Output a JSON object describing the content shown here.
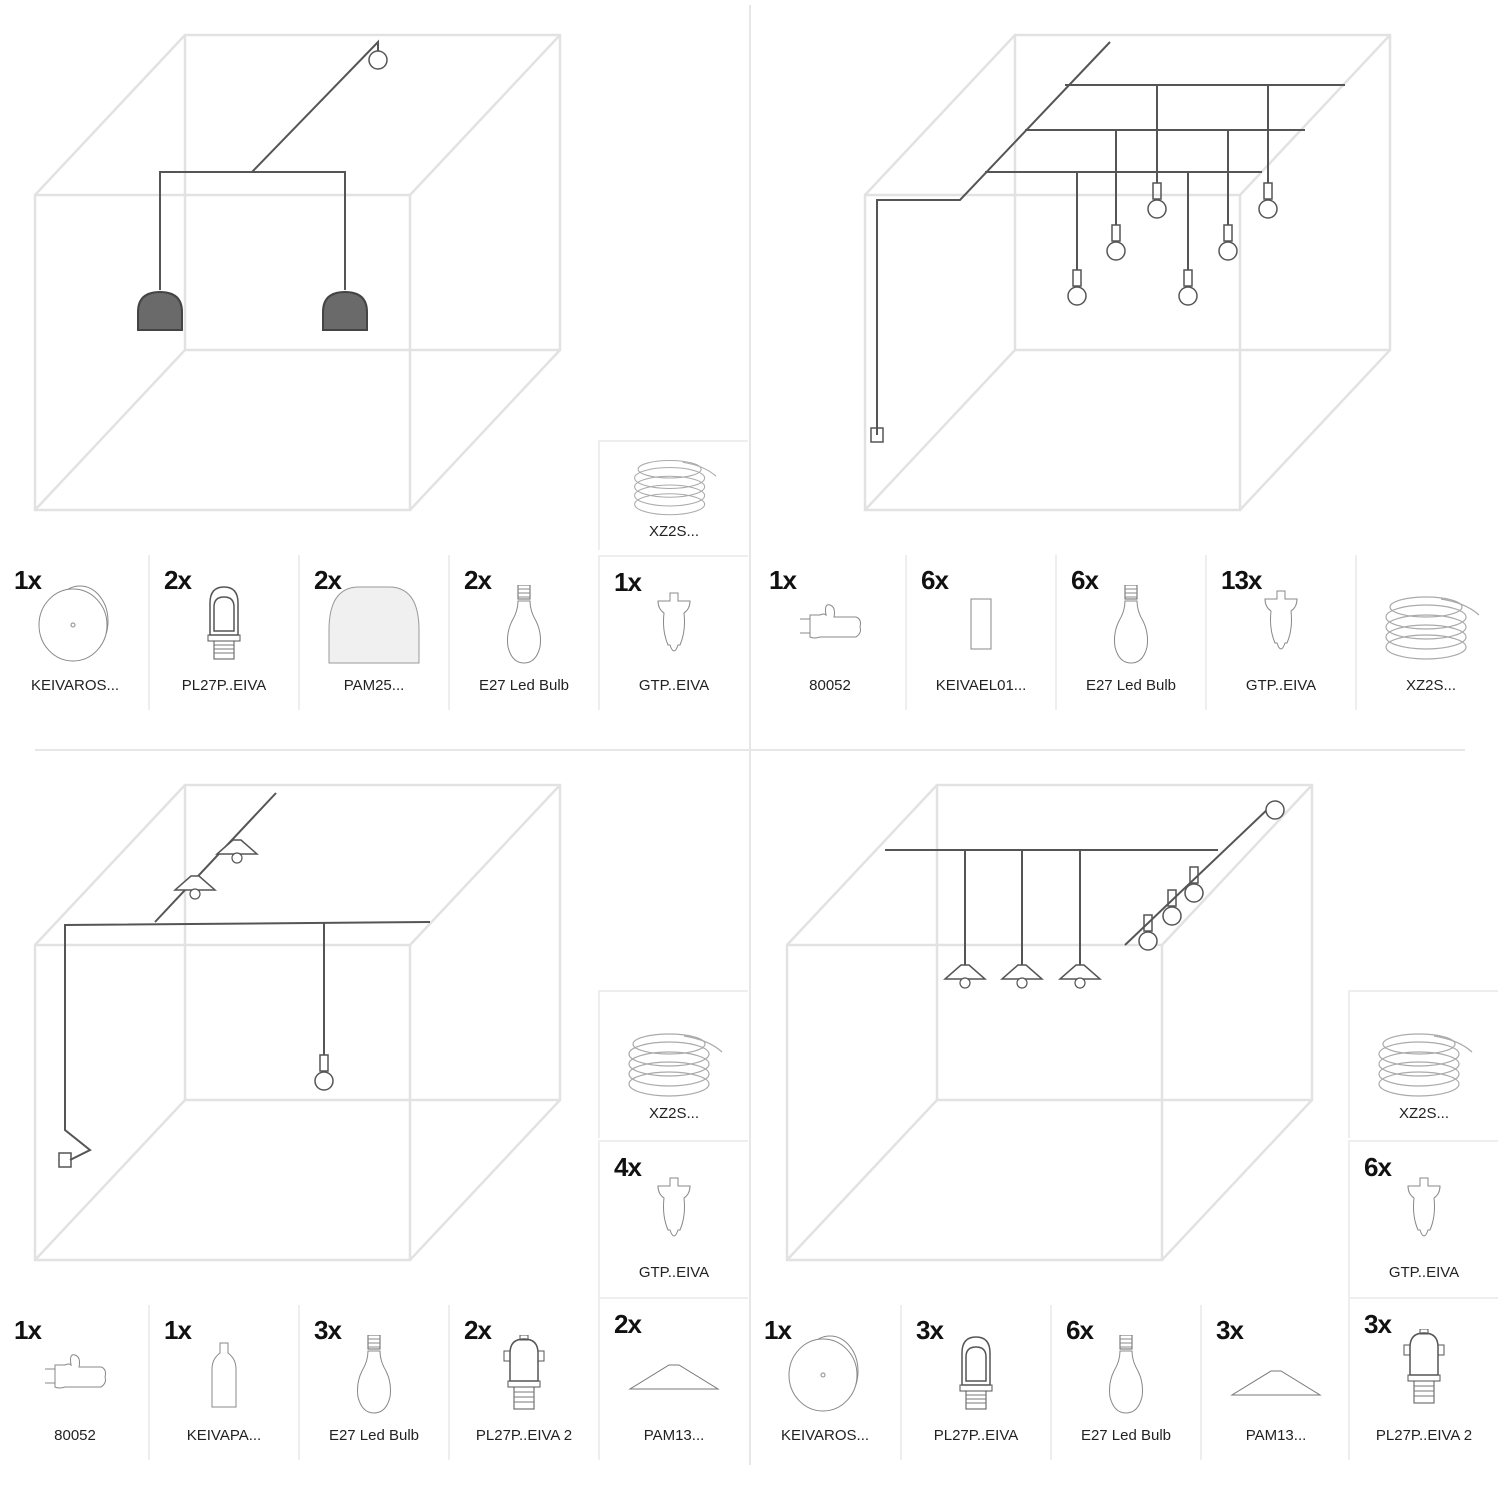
{
  "colors": {
    "room": "#e2e2e2",
    "cable": "#555555",
    "shade_fill": "#6a6a6a",
    "divider": "#e6e6e6"
  },
  "quadrants": [
    {
      "items": [
        {
          "count": "1x",
          "label": "KEIVAROS...",
          "icon": "ceiling-rose-icon"
        },
        {
          "count": "2x",
          "label": "PL27P..EIVA",
          "icon": "lamp-holder-icon"
        },
        {
          "count": "2x",
          "label": "PAM25...",
          "icon": "dome-shade-icon"
        },
        {
          "count": "2x",
          "label": "E27 Led Bulb",
          "icon": "bulb-icon"
        },
        {
          "count": "",
          "label": "XZ2S...",
          "icon": "cable-coil-icon"
        },
        {
          "count": "1x",
          "label": "GTP..EIVA",
          "icon": "cable-holder-icon"
        }
      ]
    },
    {
      "items": [
        {
          "count": "1x",
          "label": "80052",
          "icon": "plug-icon"
        },
        {
          "count": "6x",
          "label": "KEIVAEL01...",
          "icon": "cylinder-holder-icon"
        },
        {
          "count": "6x",
          "label": "E27 Led Bulb",
          "icon": "bulb-icon"
        },
        {
          "count": "13x",
          "label": "GTP..EIVA",
          "icon": "cable-holder-icon"
        },
        {
          "count": "",
          "label": "XZ2S...",
          "icon": "cable-coil-icon"
        }
      ]
    },
    {
      "items": [
        {
          "count": "1x",
          "label": "80052",
          "icon": "plug-icon"
        },
        {
          "count": "1x",
          "label": "KEIVAPA...",
          "icon": "bottle-holder-icon"
        },
        {
          "count": "3x",
          "label": "E27 Led Bulb",
          "icon": "bulb-icon"
        },
        {
          "count": "2x",
          "label": "PL27P..EIVA 2",
          "icon": "lamp-holder-ring-icon"
        },
        {
          "count": "",
          "label": "XZ2S...",
          "icon": "cable-coil-icon"
        },
        {
          "count": "4x",
          "label": "GTP..EIVA",
          "icon": "cable-holder-icon"
        },
        {
          "count": "2x",
          "label": "PAM13...",
          "icon": "flat-shade-icon"
        }
      ]
    },
    {
      "items": [
        {
          "count": "1x",
          "label": "KEIVAROS...",
          "icon": "ceiling-rose-icon"
        },
        {
          "count": "3x",
          "label": "PL27P..EIVA",
          "icon": "lamp-holder-icon"
        },
        {
          "count": "6x",
          "label": "E27 Led Bulb",
          "icon": "bulb-icon"
        },
        {
          "count": "3x",
          "label": "PAM13...",
          "icon": "flat-shade-icon"
        },
        {
          "count": "",
          "label": "XZ2S...",
          "icon": "cable-coil-icon"
        },
        {
          "count": "6x",
          "label": "GTP..EIVA",
          "icon": "cable-holder-icon"
        },
        {
          "count": "3x",
          "label": "PL27P..EIVA 2",
          "icon": "lamp-holder-ring-icon"
        }
      ]
    }
  ]
}
